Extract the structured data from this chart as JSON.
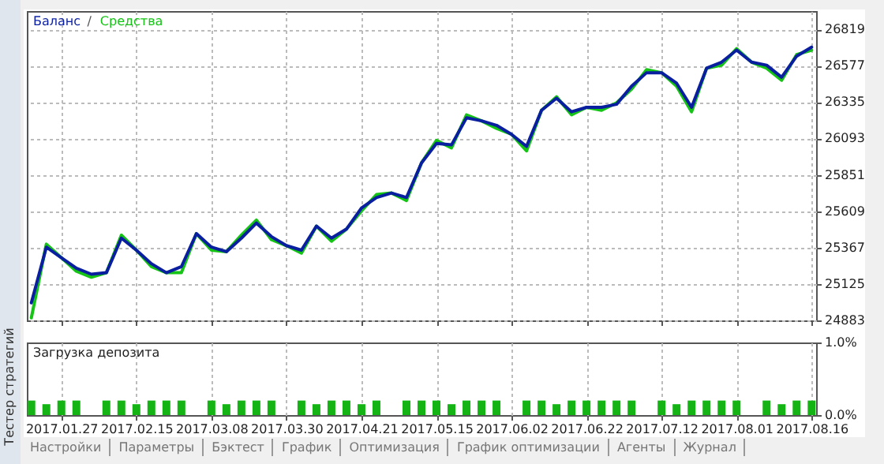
{
  "chart_data": [
    {
      "type": "line",
      "categories": [
        null,
        null,
        "2017.01.27",
        null,
        null,
        null,
        null,
        "2017.02.15",
        null,
        null,
        null,
        null,
        "2017.03.08",
        null,
        null,
        null,
        null,
        "2017.03.30",
        null,
        null,
        null,
        null,
        "2017.04.21",
        null,
        null,
        null,
        null,
        "2017.05.15",
        null,
        null,
        null,
        null,
        "2017.06.02",
        null,
        null,
        null,
        null,
        "2017.06.22",
        null,
        null,
        null,
        null,
        "2017.07.12",
        null,
        null,
        null,
        null,
        "2017.08.01",
        null,
        null,
        null,
        null,
        "2017.08.16"
      ],
      "series": [
        {
          "name": "Баланс",
          "color": "#0a1fa0",
          "values": [
            25000,
            25370,
            25300,
            25230,
            25190,
            25200,
            25430,
            25350,
            25260,
            25200,
            25240,
            25460,
            25370,
            25340,
            25430,
            25530,
            25440,
            25380,
            25350,
            25510,
            25430,
            25490,
            25630,
            25700,
            25730,
            25700,
            25930,
            26060,
            26050,
            26230,
            26210,
            26180,
            26120,
            26040,
            26280,
            26360,
            26270,
            26300,
            26300,
            26320,
            26440,
            26530,
            26530,
            26460,
            26300,
            26560,
            26600,
            26680,
            26600,
            26580,
            26500,
            26640,
            26700
          ]
        },
        {
          "name": "Средства",
          "color": "#16c416",
          "values": [
            24900,
            25390,
            25300,
            25210,
            25170,
            25200,
            25450,
            25350,
            25240,
            25200,
            25200,
            25460,
            25350,
            25340,
            25450,
            25550,
            25420,
            25380,
            25330,
            25510,
            25410,
            25490,
            25610,
            25720,
            25730,
            25680,
            25930,
            26080,
            26030,
            26250,
            26210,
            26160,
            26120,
            26010,
            26280,
            26370,
            26250,
            26300,
            26280,
            26330,
            26420,
            26550,
            26530,
            26440,
            26270,
            26560,
            26580,
            26690,
            26600,
            26560,
            26480,
            26650,
            26680
          ]
        }
      ],
      "ylim": [
        24883,
        26940
      ],
      "yticks": [
        24883,
        25125,
        25367,
        25609,
        25851,
        26093,
        26335,
        26577,
        26819
      ],
      "grid": true,
      "tick_labels": "y",
      "annotations": [
        "/"
      ]
    },
    {
      "type": "bar",
      "title": "Загрузка депозита",
      "categories": [
        null,
        null,
        "2017.01.27",
        null,
        null,
        null,
        null,
        "2017.02.15",
        null,
        null,
        null,
        null,
        "2017.03.08",
        null,
        null,
        null,
        null,
        "2017.03.30",
        null,
        null,
        null,
        null,
        "2017.04.21",
        null,
        null,
        null,
        null,
        "2017.05.15",
        null,
        null,
        null,
        null,
        "2017.06.02",
        null,
        null,
        null,
        null,
        "2017.06.22",
        null,
        null,
        null,
        null,
        "2017.07.12",
        null,
        null,
        null,
        null,
        "2017.08.01",
        null,
        null,
        null,
        null,
        "2017.08.16"
      ],
      "values": [
        0.2,
        0.15,
        0.2,
        0.2,
        null,
        0.2,
        0.2,
        0.15,
        0.2,
        0.2,
        0.2,
        null,
        0.2,
        0.15,
        0.2,
        0.2,
        0.2,
        null,
        0.2,
        0.15,
        0.2,
        0.2,
        0.15,
        0.2,
        null,
        0.2,
        0.2,
        0.2,
        0.15,
        0.2,
        0.2,
        0.2,
        null,
        0.2,
        0.2,
        0.15,
        0.2,
        0.2,
        0.2,
        0.2,
        0.2,
        null,
        0.2,
        0.15,
        0.2,
        0.2,
        0.2,
        0.2,
        null,
        0.2,
        0.15,
        0.2,
        0.2
      ],
      "color": "#14b414",
      "ylim": [
        0,
        1
      ],
      "yticks": [
        {
          "value": 0,
          "label": "0.0%"
        },
        {
          "value": 1,
          "label": "1.0%"
        }
      ],
      "grid": "x"
    },
    {
      "type": "other",
      "title": "Тестер стратегий",
      "annotations": [
        "Настройки",
        "Параметры",
        "Бэктест",
        "График",
        "Оптимизация",
        "График оптимизации",
        "Агенты",
        "Журнал"
      ]
    }
  ]
}
